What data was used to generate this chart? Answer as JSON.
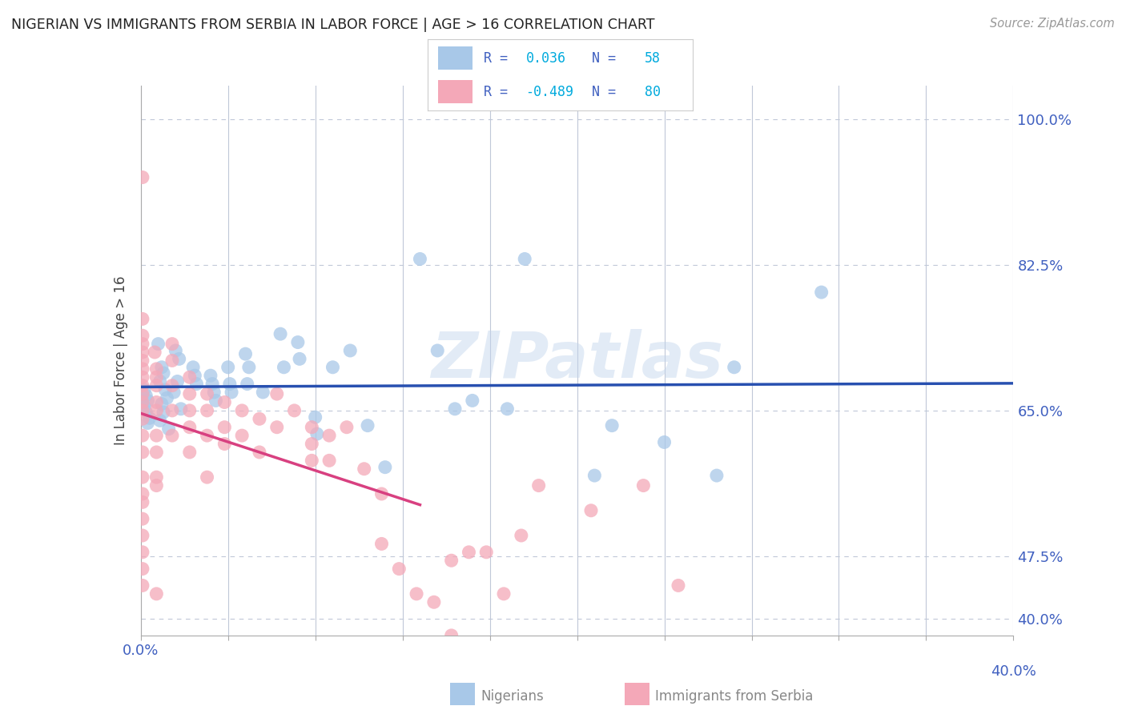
{
  "title": "NIGERIAN VS IMMIGRANTS FROM SERBIA IN LABOR FORCE | AGE > 16 CORRELATION CHART",
  "source": "Source: ZipAtlas.com",
  "ylabel": "In Labor Force | Age > 16",
  "xlim": [
    0.0,
    0.05
  ],
  "ylim": [
    0.38,
    1.04
  ],
  "x_ticks": [
    0.0,
    0.005,
    0.01,
    0.015,
    0.02,
    0.025,
    0.03,
    0.035,
    0.04,
    0.045,
    0.05
  ],
  "x_tick_labels_show": [
    "0.0%",
    "",
    "",
    "",
    "",
    "",
    "",
    "",
    "",
    "",
    ""
  ],
  "y_ticks": [
    0.4,
    0.475,
    0.65,
    0.825,
    1.0
  ],
  "y_tick_labels": [
    "40.0%",
    "47.5%",
    "65.0%",
    "82.5%",
    "100.0%"
  ],
  "right_label": "40.0%",
  "r_nigerian": "0.036",
  "n_nigerian": "58",
  "r_serbia": "-0.489",
  "n_serbia": "80",
  "nigerian_color": "#a8c8e8",
  "serbia_color": "#f4a8b8",
  "nigerian_line_color": "#2850b0",
  "serbia_line_color": "#d84080",
  "text_color": "#4060c0",
  "tick_color": "#8898b8",
  "background_color": "#ffffff",
  "grid_color": "#c0c8d8",
  "watermark": "ZIPatlas",
  "nigerian_x": [
    0.0002,
    0.0003,
    0.0004,
    0.0002,
    0.0003,
    0.0005,
    0.0004,
    0.001,
    0.0012,
    0.0013,
    0.0011,
    0.0014,
    0.0015,
    0.0012,
    0.0013,
    0.0011,
    0.0016,
    0.002,
    0.0022,
    0.0021,
    0.0019,
    0.0023,
    0.003,
    0.0031,
    0.0032,
    0.004,
    0.0041,
    0.0042,
    0.0043,
    0.005,
    0.0051,
    0.0052,
    0.006,
    0.0062,
    0.0061,
    0.007,
    0.008,
    0.0082,
    0.009,
    0.0091,
    0.01,
    0.0101,
    0.011,
    0.012,
    0.013,
    0.014,
    0.016,
    0.017,
    0.018,
    0.019,
    0.021,
    0.022,
    0.026,
    0.027,
    0.03,
    0.033,
    0.034,
    0.039
  ],
  "nigerian_y": [
    0.675,
    0.668,
    0.662,
    0.655,
    0.648,
    0.641,
    0.635,
    0.73,
    0.702,
    0.695,
    0.685,
    0.675,
    0.665,
    0.658,
    0.648,
    0.638,
    0.628,
    0.722,
    0.712,
    0.685,
    0.672,
    0.652,
    0.702,
    0.692,
    0.682,
    0.692,
    0.682,
    0.672,
    0.662,
    0.702,
    0.682,
    0.672,
    0.718,
    0.702,
    0.682,
    0.672,
    0.742,
    0.702,
    0.732,
    0.712,
    0.642,
    0.622,
    0.702,
    0.722,
    0.632,
    0.582,
    0.832,
    0.722,
    0.652,
    0.662,
    0.652,
    0.832,
    0.572,
    0.632,
    0.612,
    0.572,
    0.702,
    0.792
  ],
  "serbia_x": [
    0.0001,
    0.0001,
    0.0001,
    0.0001,
    0.0001,
    0.0001,
    0.0001,
    0.0001,
    0.0001,
    0.0001,
    0.0001,
    0.0001,
    0.0001,
    0.0001,
    0.0001,
    0.0001,
    0.0001,
    0.0001,
    0.0001,
    0.0001,
    0.0001,
    0.0001,
    0.0001,
    0.0008,
    0.0009,
    0.0009,
    0.0009,
    0.0009,
    0.0009,
    0.0009,
    0.0009,
    0.0009,
    0.0009,
    0.0009,
    0.0018,
    0.0018,
    0.0018,
    0.0018,
    0.0018,
    0.0028,
    0.0028,
    0.0028,
    0.0028,
    0.0028,
    0.0038,
    0.0038,
    0.0038,
    0.0038,
    0.0048,
    0.0048,
    0.0048,
    0.0058,
    0.0058,
    0.0068,
    0.0068,
    0.0078,
    0.0078,
    0.0088,
    0.0098,
    0.0098,
    0.0098,
    0.0108,
    0.0108,
    0.0118,
    0.0128,
    0.0138,
    0.0138,
    0.0148,
    0.0158,
    0.0168,
    0.0178,
    0.0178,
    0.0188,
    0.0198,
    0.0208,
    0.0218,
    0.0228,
    0.0258,
    0.0288,
    0.0308
  ],
  "serbia_y": [
    0.93,
    0.76,
    0.74,
    0.73,
    0.72,
    0.71,
    0.7,
    0.69,
    0.68,
    0.67,
    0.66,
    0.65,
    0.64,
    0.62,
    0.6,
    0.57,
    0.55,
    0.54,
    0.52,
    0.5,
    0.48,
    0.46,
    0.44,
    0.72,
    0.7,
    0.69,
    0.68,
    0.66,
    0.65,
    0.62,
    0.6,
    0.57,
    0.56,
    0.43,
    0.73,
    0.71,
    0.68,
    0.65,
    0.62,
    0.69,
    0.67,
    0.65,
    0.63,
    0.6,
    0.67,
    0.65,
    0.62,
    0.57,
    0.66,
    0.63,
    0.61,
    0.65,
    0.62,
    0.64,
    0.6,
    0.67,
    0.63,
    0.65,
    0.63,
    0.61,
    0.59,
    0.62,
    0.59,
    0.63,
    0.58,
    0.55,
    0.49,
    0.46,
    0.43,
    0.42,
    0.47,
    0.38,
    0.48,
    0.48,
    0.43,
    0.5,
    0.56,
    0.53,
    0.56,
    0.44
  ]
}
